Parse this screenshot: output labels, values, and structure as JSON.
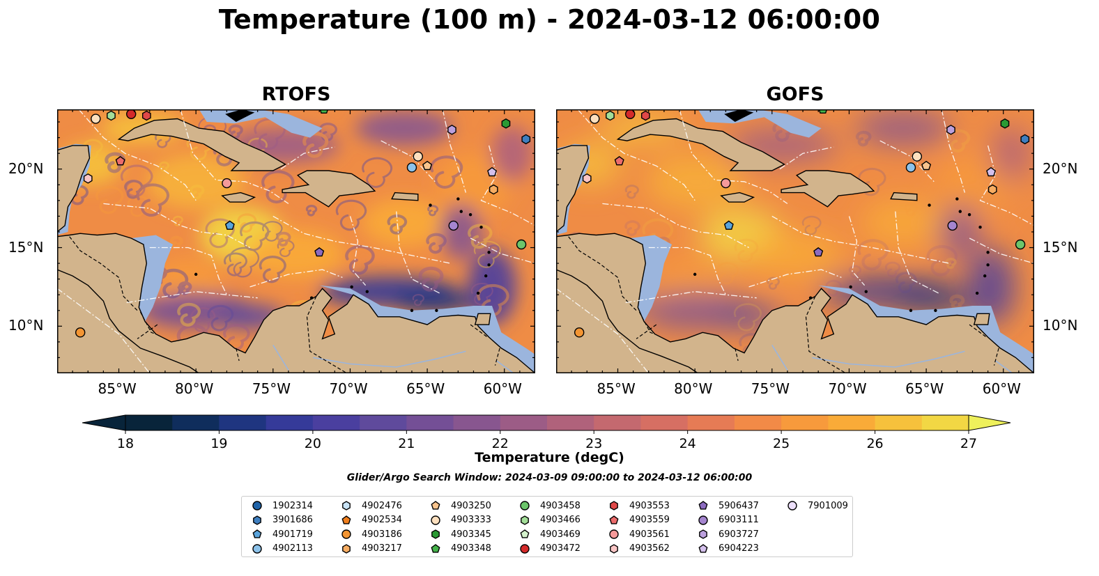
{
  "title": "Temperature (100 m) - 2024-03-12 06:00:00",
  "panels": [
    {
      "id": "rtofs",
      "title": "RTOFS"
    },
    {
      "id": "gofs",
      "title": "GOFS"
    }
  ],
  "lon_ticks": [
    "85°W",
    "80°W",
    "75°W",
    "70°W",
    "65°W",
    "60°W"
  ],
  "lat_ticks": [
    "20°N",
    "15°N",
    "10°N"
  ],
  "colorbar": {
    "label": "Temperature (degC)",
    "ticks": [
      "18",
      "19",
      "20",
      "21",
      "22",
      "23",
      "24",
      "25",
      "26",
      "27"
    ],
    "min": 18,
    "max": 27,
    "step": 0.5,
    "extend": "both",
    "colors": [
      "#08243a",
      "#0f2d5c",
      "#1f3580",
      "#353a99",
      "#4a3f9f",
      "#5f4a9c",
      "#744f96",
      "#88568f",
      "#9c5c86",
      "#b0627b",
      "#c4696f",
      "#d66f63",
      "#e67b55",
      "#f28a47",
      "#f79a3c",
      "#f9ab38",
      "#f6c13c",
      "#f2d744",
      "#eef05b"
    ]
  },
  "search_window": "Glider/Argo Search Window: 2024-03-09 09:00:00 to 2024-03-12 06:00:00",
  "colors": {
    "land": "#d2b48c",
    "shelf": "#9bb5dd",
    "deep_pacific": "#08243a"
  },
  "legend": [
    {
      "id": "1902314",
      "marker": "circle",
      "color": "#1f63a8"
    },
    {
      "id": "3901686",
      "marker": "hexagon",
      "color": "#3f7fc0"
    },
    {
      "id": "4901719",
      "marker": "pentagon",
      "color": "#5aa4dc"
    },
    {
      "id": "4902113",
      "marker": "circle",
      "color": "#8cc2ea"
    },
    {
      "id": "4902476",
      "marker": "hexagon",
      "color": "#c9e4f7"
    },
    {
      "id": "4902534",
      "marker": "pentagon",
      "color": "#f07f1e"
    },
    {
      "id": "4903186",
      "marker": "circle",
      "color": "#f39533"
    },
    {
      "id": "4903217",
      "marker": "hexagon",
      "color": "#f7ad62"
    },
    {
      "id": "4903250",
      "marker": "pentagon",
      "color": "#f9c48d"
    },
    {
      "id": "4903333",
      "marker": "circle",
      "color": "#fde0bf"
    },
    {
      "id": "4903345",
      "marker": "hexagon",
      "color": "#2a9a34"
    },
    {
      "id": "4903348",
      "marker": "pentagon",
      "color": "#45b34a"
    },
    {
      "id": "4903458",
      "marker": "circle",
      "color": "#6cc56b"
    },
    {
      "id": "4903466",
      "marker": "hexagon",
      "color": "#a3de99"
    },
    {
      "id": "4903469",
      "marker": "pentagon",
      "color": "#d4f2cc"
    },
    {
      "id": "4903472",
      "marker": "circle",
      "color": "#d42a2a"
    },
    {
      "id": "4903553",
      "marker": "hexagon",
      "color": "#e04848"
    },
    {
      "id": "4903559",
      "marker": "pentagon",
      "color": "#ec6c6c"
    },
    {
      "id": "4903561",
      "marker": "circle",
      "color": "#f59a9a"
    },
    {
      "id": "4903562",
      "marker": "hexagon",
      "color": "#f9c5c5"
    },
    {
      "id": "5906437",
      "marker": "pentagon",
      "color": "#8c6bbf"
    },
    {
      "id": "6903111",
      "marker": "circle",
      "color": "#a585cf"
    },
    {
      "id": "6903727",
      "marker": "hexagon",
      "color": "#bca0dd"
    },
    {
      "id": "6904223",
      "marker": "pentagon",
      "color": "#d4c0ec"
    },
    {
      "id": "7901009",
      "marker": "circle",
      "color": "#ecdffa"
    }
  ],
  "floats": [
    {
      "id": "4903186",
      "lon": -87.5,
      "lat": 9.6
    },
    {
      "id": "4903333",
      "lon": -86.5,
      "lat": 23.2
    },
    {
      "id": "4903466",
      "lon": -85.5,
      "lat": 23.4
    },
    {
      "id": "4903472",
      "lon": -84.2,
      "lat": 23.5
    },
    {
      "id": "4903553",
      "lon": -83.2,
      "lat": 23.4
    },
    {
      "id": "4903348",
      "lon": -71.7,
      "lat": 23.8
    },
    {
      "id": "4903559",
      "lon": -84.9,
      "lat": 20.5
    },
    {
      "id": "4903562",
      "lon": -87.0,
      "lat": 19.4
    },
    {
      "id": "4903561",
      "lon": -78.0,
      "lat": 19.1
    },
    {
      "id": "4901719",
      "lon": -77.8,
      "lat": 16.4
    },
    {
      "id": "5906437",
      "lon": -72.0,
      "lat": 14.7
    },
    {
      "id": "6903727",
      "lon": -63.4,
      "lat": 22.5
    },
    {
      "id": "4903345",
      "lon": -59.9,
      "lat": 22.9
    },
    {
      "id": "3901686",
      "lon": -58.6,
      "lat": 21.9
    },
    {
      "id": "4903333",
      "lon": -65.6,
      "lat": 20.8
    },
    {
      "id": "4902113",
      "lon": -66.0,
      "lat": 20.1
    },
    {
      "id": "4903250",
      "lon": -65.0,
      "lat": 20.2
    },
    {
      "id": "6904223",
      "lon": -60.8,
      "lat": 19.8
    },
    {
      "id": "4903217",
      "lon": -60.7,
      "lat": 18.7
    },
    {
      "id": "6903111",
      "lon": -63.3,
      "lat": 16.4
    },
    {
      "id": "4903458",
      "lon": -58.9,
      "lat": 15.2
    }
  ]
}
